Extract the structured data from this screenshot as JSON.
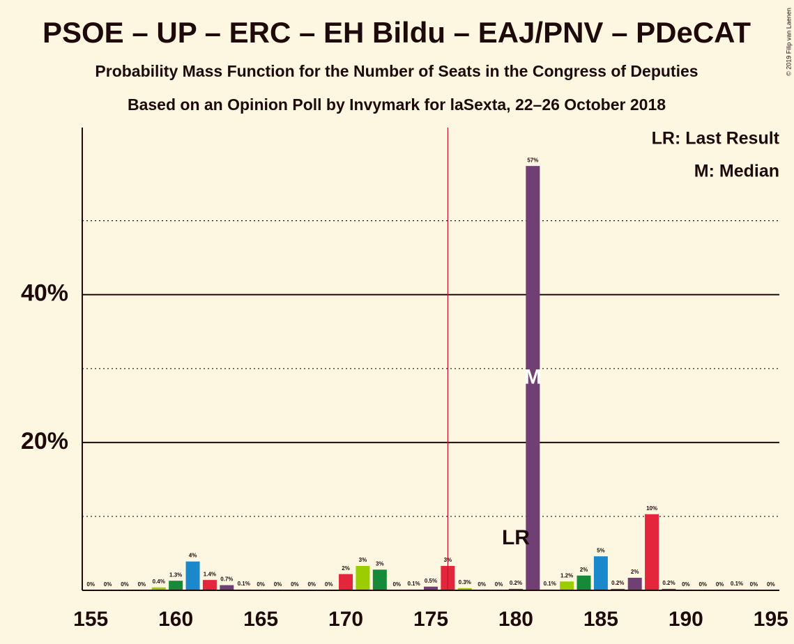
{
  "chart_data": {
    "type": "bar",
    "title": "PSOE – UP – ERC – EH Bildu – EAJ/PNV – PDeCAT",
    "subtitle": "Probability Mass Function for the Number of Seats in the Congress of Deputies",
    "subtitle2": "Based on an Opinion Poll by Invymark for laSexta, 22–26 October 2018",
    "copyright": "© 2019 Filip van Laenen",
    "legend_texts": [
      "LR: Last Result",
      "M: Median"
    ],
    "x": [
      155,
      156,
      157,
      158,
      159,
      160,
      161,
      162,
      163,
      164,
      165,
      166,
      167,
      168,
      169,
      170,
      171,
      172,
      173,
      174,
      175,
      176,
      177,
      178,
      179,
      180,
      181,
      182,
      183,
      184,
      185,
      186,
      187,
      188,
      189,
      190,
      191,
      192,
      193,
      194,
      195
    ],
    "values": [
      0,
      0,
      0,
      0,
      0.4,
      1.3,
      3.9,
      1.4,
      0.7,
      0.1,
      0,
      0,
      0,
      0,
      0,
      2.2,
      3.3,
      2.8,
      0,
      0.1,
      0.5,
      3.3,
      0.3,
      0,
      0,
      0.2,
      57.4,
      0.1,
      1.2,
      2.0,
      4.6,
      0.2,
      1.7,
      10.3,
      0.2,
      0,
      0,
      0,
      0.1,
      0,
      0
    ],
    "value_labels": [
      "0%",
      "0%",
      "0%",
      "0%",
      "0.4%",
      "1.3%",
      "4%",
      "1.4%",
      "0.7%",
      "0.1%",
      "0%",
      "0%",
      "0%",
      "0%",
      "0%",
      "2%",
      "3%",
      "3%",
      "0%",
      "0.1%",
      "0.5%",
      "3%",
      "0.3%",
      "0%",
      "0%",
      "0.2%",
      "57%",
      "0.1%",
      "1.2%",
      "2%",
      "5%",
      "0.2%",
      "2%",
      "10%",
      "0.2%",
      "0%",
      "0%",
      "0%",
      "0.1%",
      "0%",
      "0%"
    ],
    "colors": [
      "#703f73",
      "#703f73",
      "#703f73",
      "#703f73",
      "#9bcd00",
      "#178a3a",
      "#1b88cc",
      "#e3263b",
      "#703f73",
      "#703f73",
      "#703f73",
      "#703f73",
      "#703f73",
      "#703f73",
      "#703f73",
      "#e3263b",
      "#9bcd00",
      "#178a3a",
      "#703f73",
      "#703f73",
      "#703f73",
      "#e3263b",
      "#9bcd00",
      "#703f73",
      "#703f73",
      "#703f73",
      "#703f73",
      "#703f73",
      "#9bcd00",
      "#178a3a",
      "#1b88cc",
      "#703f73",
      "#703f73",
      "#e3263b",
      "#703f73",
      "#703f73",
      "#703f73",
      "#703f73",
      "#703f73",
      "#703f73",
      "#703f73"
    ],
    "xlim": [
      154.5,
      195.5
    ],
    "xticks": [
      155,
      160,
      165,
      170,
      175,
      180,
      185,
      190,
      195
    ],
    "ylim": [
      0,
      62.6
    ],
    "yticks": [
      {
        "value": 20,
        "label": "20%"
      },
      {
        "value": 40,
        "label": "40%"
      }
    ],
    "minor_yticks": [
      10,
      30,
      50
    ],
    "majority_line": 176,
    "last_result": 180,
    "last_result_label": "LR",
    "median": 181,
    "median_label": "M"
  }
}
